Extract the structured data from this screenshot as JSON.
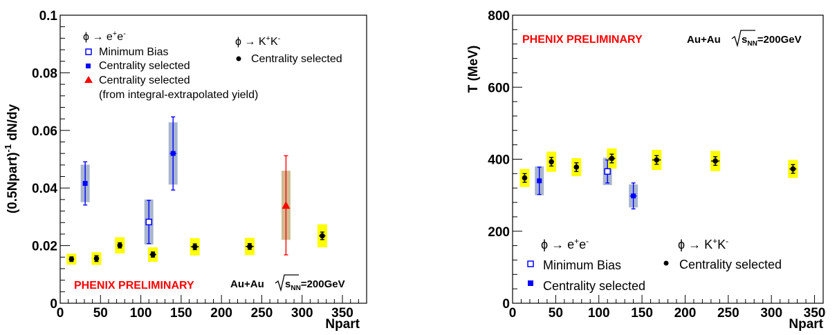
{
  "colors": {
    "ee": "#0000ff",
    "ee_sys": "#9aa9c8",
    "kk": "#000000",
    "kk_sys": "#ffff00",
    "extrap": "#ff0000",
    "extrap_sys": "#c8b080",
    "prelim": "#ff0000"
  },
  "chart_data": [
    {
      "type": "scatter",
      "ylabel_main": "(0.5Npart)",
      "ylabel_sup": "-1",
      "ylabel_tail": " dN/dy",
      "xlabel": "Npart",
      "xlim": [
        0,
        380
      ],
      "ylim": [
        0,
        0.1
      ],
      "xticks": [
        "0",
        "50",
        "100",
        "150",
        "200",
        "250",
        "300",
        "350"
      ],
      "yticks": [
        "0",
        "0.02",
        "0.04",
        "0.06",
        "0.08",
        "0.1"
      ],
      "grid": false,
      "preliminary_label": "PHENIX PRELIMINARY",
      "system_label": {
        "pre": "Au+Au ",
        "s": "s",
        "sub": "NN",
        "post": "=200GeV"
      },
      "legend": {
        "ee_title": {
          "pre": "ϕ → e",
          "sup1": "+",
          "mid": "e",
          "sup2": "-"
        },
        "kk_title": {
          "pre": "ϕ → K",
          "sup1": "+",
          "mid": "K",
          "sup2": "-"
        },
        "items": [
          "Minimum Bias",
          "Centrality selected",
          "Centrality selected",
          "(from integral-extrapolated yield)"
        ],
        "kk_item": "Centrality selected"
      },
      "series": [
        {
          "name": "Minimum Bias",
          "marker": "open-square",
          "points": [
            {
              "x": 110,
              "y": 0.0282,
              "err": 0.0075,
              "sys": 0.0078,
              "xerr": 2
            }
          ]
        },
        {
          "name": "Centrality selected",
          "channel": "ee",
          "marker": "filled-square",
          "points": [
            {
              "x": 31,
              "y": 0.0416,
              "err": 0.0075,
              "sys": 0.0065,
              "xerr": 2
            },
            {
              "x": 140,
              "y": 0.052,
              "err": 0.0127,
              "sys": 0.0108,
              "xerr": 4
            }
          ]
        },
        {
          "name": "Centrality selected",
          "channel": "ee-extrapolated",
          "marker": "triangle",
          "points": [
            {
              "x": 280,
              "y": 0.034,
              "err": 0.0172,
              "sys": 0.012,
              "xerr": 1
            }
          ]
        },
        {
          "name": "Centrality selected",
          "channel": "KK",
          "marker": "filled-circle",
          "points": [
            {
              "x": 14,
              "y": 0.0153,
              "err": 0.0008,
              "sys": 0.0019,
              "xerr": 2
            },
            {
              "x": 45,
              "y": 0.0155,
              "err": 0.001,
              "sys": 0.0022,
              "xerr": 2
            },
            {
              "x": 74,
              "y": 0.0201,
              "err": 0.0009,
              "sys": 0.0028,
              "xerr": 3
            },
            {
              "x": 115,
              "y": 0.0169,
              "err": 0.0009,
              "sys": 0.0025,
              "xerr": 4
            },
            {
              "x": 167,
              "y": 0.0196,
              "err": 0.001,
              "sys": 0.003,
              "xerr": 5
            },
            {
              "x": 235,
              "y": 0.0197,
              "err": 0.001,
              "sys": 0.003,
              "xerr": 5
            },
            {
              "x": 325,
              "y": 0.0234,
              "err": 0.0013,
              "sys": 0.004,
              "xerr": 4
            }
          ]
        }
      ]
    },
    {
      "type": "scatter",
      "ylabel": "T (MeV)",
      "xlabel": "Npart",
      "xlim": [
        0,
        360
      ],
      "ylim": [
        0,
        800
      ],
      "xticks": [
        "0",
        "50",
        "100",
        "150",
        "200",
        "250",
        "300",
        "350"
      ],
      "yticks": [
        "0",
        "200",
        "400",
        "600",
        "800"
      ],
      "grid": false,
      "preliminary_label": "PHENIX PRELIMINARY",
      "system_label": {
        "pre": "Au+Au ",
        "s": "s",
        "sub": "NN",
        "post": "=200GeV"
      },
      "legend": {
        "ee_title": {
          "pre": "ϕ → e",
          "sup1": "+",
          "mid": "e",
          "sup2": "-"
        },
        "kk_title": {
          "pre": "ϕ → K",
          "sup1": "+",
          "mid": "K",
          "sup2": "-"
        },
        "items": [
          "Minimum Bias",
          "Centrality selected"
        ],
        "kk_item": "Centrality selected"
      },
      "series": [
        {
          "name": "Minimum Bias",
          "marker": "open-square",
          "points": [
            {
              "x": 110,
              "y": 366,
              "err": 32,
              "sys": 38,
              "xerr": 2
            }
          ]
        },
        {
          "name": "Centrality selected",
          "channel": "ee",
          "marker": "filled-square",
          "points": [
            {
              "x": 31,
              "y": 340,
              "err": 38,
              "sys": 40,
              "xerr": 2
            },
            {
              "x": 140,
              "y": 298,
              "err": 36,
              "sys": 32,
              "xerr": 4
            }
          ]
        },
        {
          "name": "Centrality selected",
          "channel": "KK",
          "marker": "filled-circle",
          "points": [
            {
              "x": 14,
              "y": 348,
              "err": 12,
              "sys": 25,
              "xerr": 2
            },
            {
              "x": 45,
              "y": 393,
              "err": 12,
              "sys": 28,
              "xerr": 2
            },
            {
              "x": 74,
              "y": 378,
              "err": 12,
              "sys": 25,
              "xerr": 3
            },
            {
              "x": 115,
              "y": 402,
              "err": 12,
              "sys": 28,
              "xerr": 4
            },
            {
              "x": 167,
              "y": 398,
              "err": 12,
              "sys": 28,
              "xerr": 5
            },
            {
              "x": 235,
              "y": 395,
              "err": 12,
              "sys": 28,
              "xerr": 5
            },
            {
              "x": 325,
              "y": 373,
              "err": 12,
              "sys": 25,
              "xerr": 4
            }
          ]
        }
      ]
    }
  ]
}
